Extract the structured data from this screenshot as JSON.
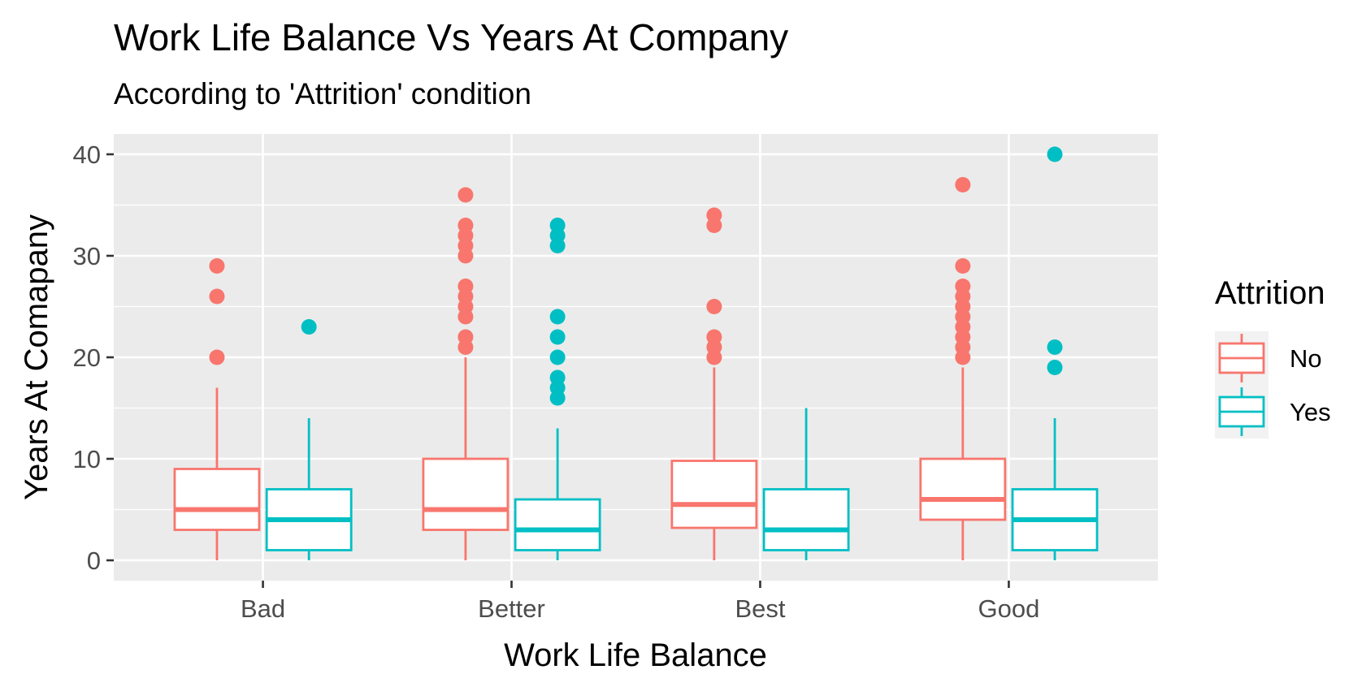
{
  "chart_data": {
    "type": "boxplot",
    "title": "Work Life Balance Vs Years At Company",
    "subtitle": "According to 'Attrition' condition",
    "xlabel": "Work Life Balance",
    "ylabel": "Years At Comapany",
    "categories": [
      "Bad",
      "Better",
      "Best",
      "Good"
    ],
    "ylim": [
      -2,
      42
    ],
    "yticks": [
      0,
      10,
      20,
      30,
      40
    ],
    "grid": true,
    "legend": {
      "title": "Attrition",
      "position": "right"
    },
    "colors": {
      "No": "#F8766D",
      "Yes": "#00BFC4",
      "panel": "#EBEBEB",
      "grid": "#FFFFFF"
    },
    "series": [
      {
        "name": "No",
        "boxes": [
          {
            "category": "Bad",
            "min": 0,
            "q1": 3,
            "median": 5,
            "q3": 9,
            "max": 17,
            "outliers": [
              20,
              26,
              29
            ]
          },
          {
            "category": "Better",
            "min": 0,
            "q1": 3,
            "median": 5,
            "q3": 10,
            "max": 20,
            "outliers": [
              21,
              22,
              24,
              25,
              26,
              27,
              30,
              31,
              32,
              33,
              36
            ]
          },
          {
            "category": "Best",
            "min": 0,
            "q1": 3.2,
            "median": 5.5,
            "q3": 9.8,
            "max": 19,
            "outliers": [
              20,
              21,
              22,
              25,
              33,
              34
            ]
          },
          {
            "category": "Good",
            "min": 0,
            "q1": 4,
            "median": 6,
            "q3": 10,
            "max": 19,
            "outliers": [
              20,
              21,
              22,
              23,
              24,
              25,
              26,
              27,
              29,
              37
            ]
          }
        ]
      },
      {
        "name": "Yes",
        "boxes": [
          {
            "category": "Bad",
            "min": 0,
            "q1": 1,
            "median": 4,
            "q3": 7,
            "max": 14,
            "outliers": [
              23
            ]
          },
          {
            "category": "Better",
            "min": 0,
            "q1": 1,
            "median": 3,
            "q3": 6,
            "max": 13,
            "outliers": [
              16,
              17,
              18,
              20,
              22,
              24,
              31,
              32,
              33
            ]
          },
          {
            "category": "Best",
            "min": 0,
            "q1": 1,
            "median": 3,
            "q3": 7,
            "max": 15,
            "outliers": []
          },
          {
            "category": "Good",
            "min": 0,
            "q1": 1,
            "median": 4,
            "q3": 7,
            "max": 14,
            "outliers": [
              19,
              21,
              40
            ]
          }
        ]
      }
    ]
  }
}
